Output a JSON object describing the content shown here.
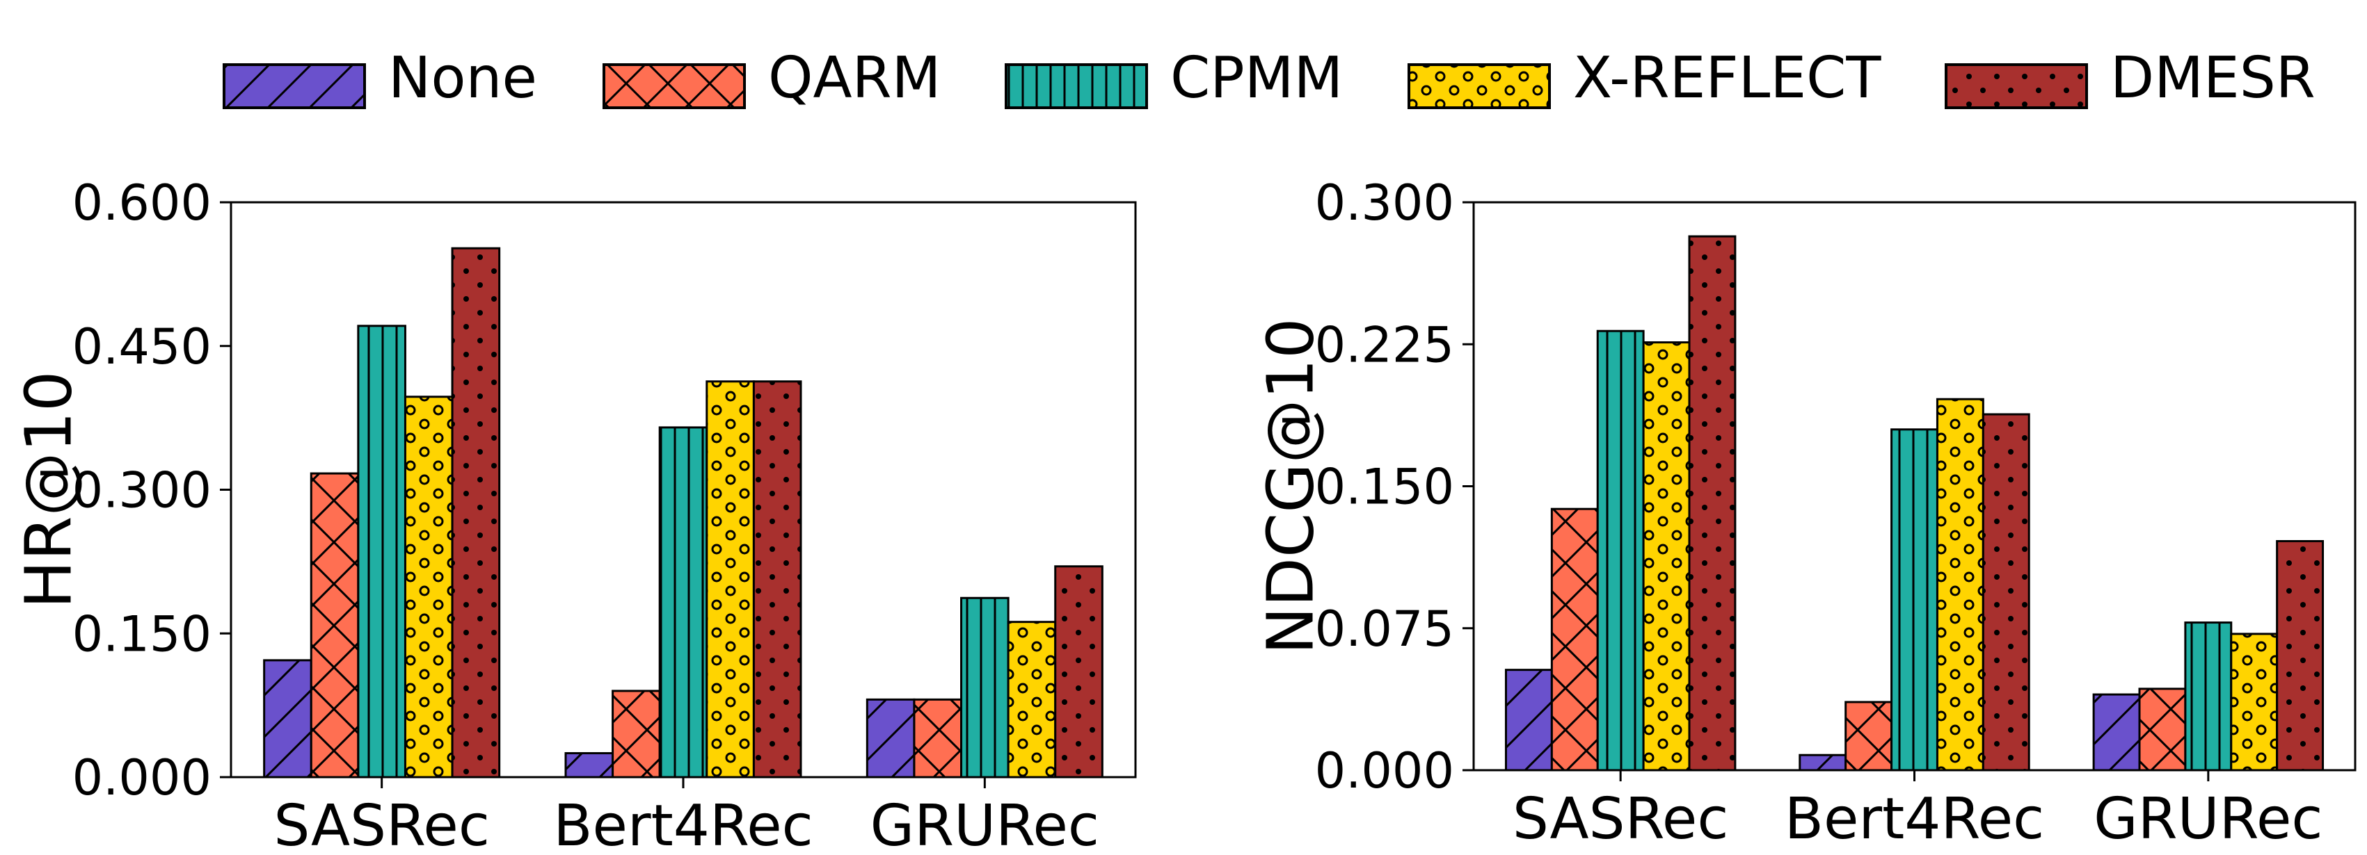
{
  "chart_data": [
    {
      "type": "bar",
      "ylabel": "HR@10",
      "ylim": [
        0,
        0.6
      ],
      "yticks": [
        "0.000",
        "0.150",
        "0.300",
        "0.450",
        "0.600"
      ],
      "categories": [
        "SASRec",
        "Bert4Rec",
        "GRURec"
      ],
      "series": [
        {
          "name": "None",
          "values": [
            0.122,
            0.025,
            0.081
          ]
        },
        {
          "name": "QARM",
          "values": [
            0.317,
            0.09,
            0.081
          ]
        },
        {
          "name": "CPMM",
          "values": [
            0.471,
            0.365,
            0.187
          ]
        },
        {
          "name": "X-REFLECT",
          "values": [
            0.397,
            0.413,
            0.162
          ]
        },
        {
          "name": "DMESR",
          "values": [
            0.552,
            0.413,
            0.22
          ]
        }
      ]
    },
    {
      "type": "bar",
      "ylabel": "NDCG@10",
      "ylim": [
        0,
        0.3
      ],
      "yticks": [
        "0.000",
        "0.075",
        "0.150",
        "0.225",
        "0.300"
      ],
      "categories": [
        "SASRec",
        "Bert4Rec",
        "GRURec"
      ],
      "series": [
        {
          "name": "None",
          "values": [
            0.053,
            0.008,
            0.04
          ]
        },
        {
          "name": "QARM",
          "values": [
            0.138,
            0.036,
            0.043
          ]
        },
        {
          "name": "CPMM",
          "values": [
            0.232,
            0.18,
            0.078
          ]
        },
        {
          "name": "X-REFLECT",
          "values": [
            0.226,
            0.196,
            0.072
          ]
        },
        {
          "name": "DMESR",
          "values": [
            0.282,
            0.188,
            0.121
          ]
        }
      ]
    }
  ],
  "legend": [
    {
      "name": "None",
      "color": "#6A51CC",
      "hatch": "diagonal"
    },
    {
      "name": "QARM",
      "color": "#FF6F52",
      "hatch": "cross"
    },
    {
      "name": "CPMM",
      "color": "#20AFA3",
      "hatch": "vertical"
    },
    {
      "name": "X-REFLECT",
      "color": "#FFD400",
      "hatch": "circles"
    },
    {
      "name": "DMESR",
      "color": "#A8302E",
      "hatch": "dots"
    }
  ]
}
